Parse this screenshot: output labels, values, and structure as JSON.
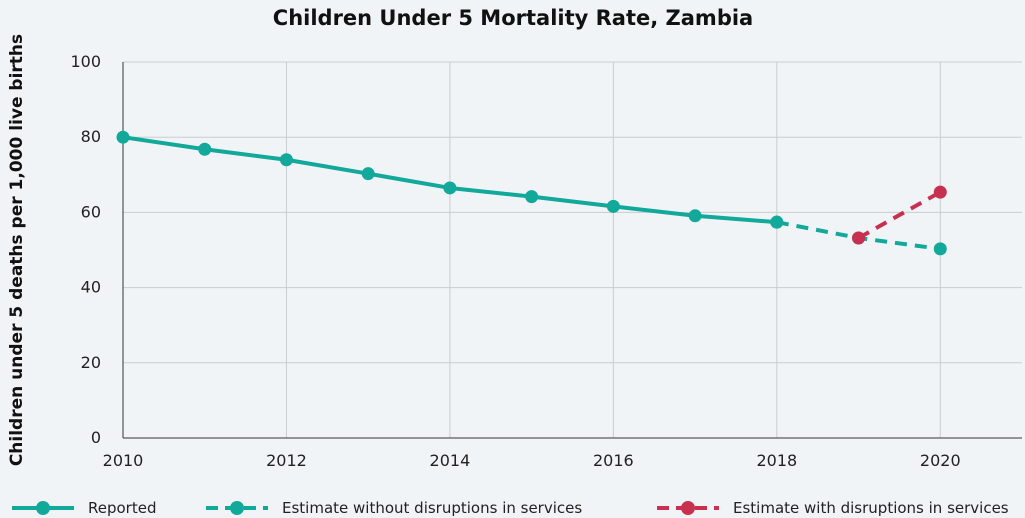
{
  "chart_data": {
    "type": "line",
    "title": "Children Under 5 Mortality Rate, Zambia",
    "xlabel": "",
    "ylabel": "Children under 5 deaths per 1,000 live births",
    "xlim": [
      2010,
      2021
    ],
    "ylim": [
      0,
      100
    ],
    "x_ticks": [
      2010,
      2012,
      2014,
      2016,
      2018,
      2020
    ],
    "y_ticks": [
      0,
      20,
      40,
      60,
      80,
      100
    ],
    "grid": true,
    "legend_position": "bottom",
    "series": [
      {
        "name": "Reported",
        "color": "#12a89a",
        "dash": "solid",
        "x": [
          2010,
          2011,
          2012,
          2013,
          2014,
          2015,
          2016,
          2017,
          2018
        ],
        "y": [
          80.0,
          76.8,
          74.0,
          70.3,
          66.5,
          64.2,
          61.6,
          59.1,
          57.4
        ]
      },
      {
        "name": "Estimate without disruptions in services",
        "color": "#12a89a",
        "dash": "dashed",
        "x": [
          2018,
          2019,
          2020
        ],
        "y": [
          57.4,
          53.2,
          50.3
        ]
      },
      {
        "name": "Estimate with disruptions in services",
        "color": "#c8304f",
        "dash": "dashed",
        "x": [
          2019,
          2020
        ],
        "y": [
          53.2,
          65.4
        ]
      }
    ]
  }
}
